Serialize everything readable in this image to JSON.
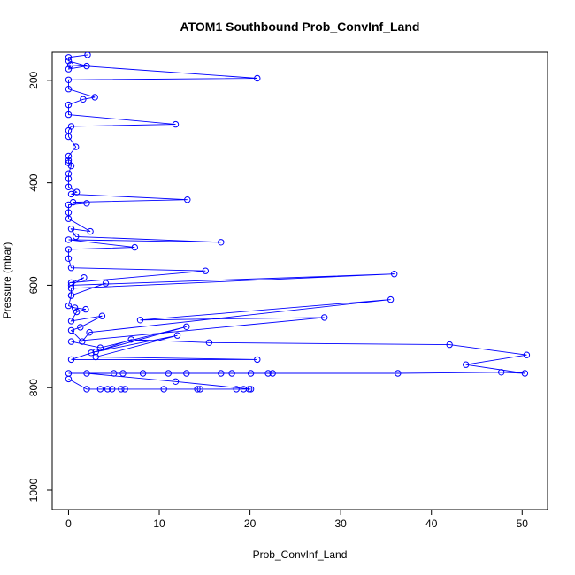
{
  "chart_data": {
    "type": "line",
    "title": "ATOM1 Southbound Prob_ConvInf_Land",
    "xlabel": "Prob_ConvInf_Land",
    "ylabel": "Pressure (mbar)",
    "xlim": [
      -1.8,
      52.8
    ],
    "ylim": [
      1038,
      145
    ],
    "y_reversed": true,
    "grid": false,
    "legend": "none",
    "x_ticks": [
      "0",
      "10",
      "20",
      "30",
      "40",
      "50"
    ],
    "y_ticks": [
      "200",
      "400",
      "600",
      "800",
      "1000"
    ],
    "series": [
      {
        "color": "#0000ff",
        "marker": "open-circle",
        "points": [
          [
            0,
            783
          ],
          [
            2,
            803
          ],
          [
            3.5,
            803
          ],
          [
            4.3,
            803
          ],
          [
            4.8,
            803
          ],
          [
            5.8,
            803
          ],
          [
            6.2,
            803
          ],
          [
            10.5,
            803
          ],
          [
            14.2,
            803
          ],
          [
            14.5,
            803
          ],
          [
            18.5,
            803
          ],
          [
            19.3,
            803
          ],
          [
            19.9,
            803
          ],
          [
            20.1,
            803
          ],
          [
            11.8,
            788
          ],
          [
            2,
            772
          ],
          [
            0,
            772
          ],
          [
            5,
            772
          ],
          [
            6,
            772
          ],
          [
            8.2,
            772
          ],
          [
            11,
            772
          ],
          [
            13,
            772
          ],
          [
            16.8,
            772
          ],
          [
            18,
            772
          ],
          [
            20.1,
            772
          ],
          [
            22,
            772
          ],
          [
            22.5,
            772
          ],
          [
            36.3,
            772
          ],
          [
            47.7,
            770
          ],
          [
            50.3,
            772
          ],
          [
            43.8,
            755
          ],
          [
            50.5,
            736
          ],
          [
            42,
            716
          ],
          [
            15.5,
            712
          ],
          [
            6.9,
            706
          ],
          [
            3,
            730
          ],
          [
            12,
            698
          ],
          [
            3,
            740
          ],
          [
            20.8,
            745
          ],
          [
            0.3,
            745
          ],
          [
            2.5,
            732
          ],
          [
            13,
            681
          ],
          [
            3.5,
            722
          ],
          [
            0.3,
            710
          ],
          [
            28.2,
            663
          ],
          [
            7.9,
            668
          ],
          [
            35.5,
            628
          ],
          [
            2.3,
            692
          ],
          [
            1.5,
            710
          ],
          [
            0.3,
            688
          ],
          [
            1.3,
            682
          ],
          [
            3.7,
            660
          ],
          [
            0.3,
            670
          ],
          [
            0.9,
            652
          ],
          [
            1.9,
            647
          ],
          [
            0.7,
            644
          ],
          [
            0,
            640
          ],
          [
            0.3,
            620
          ],
          [
            4.1,
            596
          ],
          [
            0.3,
            620
          ],
          [
            0.3,
            606
          ],
          [
            35.9,
            578
          ],
          [
            0.3,
            600
          ],
          [
            1.7,
            585
          ],
          [
            0.3,
            595
          ],
          [
            15.1,
            572
          ],
          [
            0.3,
            566
          ],
          [
            0,
            548
          ],
          [
            0,
            530
          ],
          [
            7.3,
            526
          ],
          [
            0,
            511
          ],
          [
            16.8,
            516
          ],
          [
            0.8,
            505
          ],
          [
            0.3,
            490
          ],
          [
            2.4,
            495
          ],
          [
            0,
            470
          ],
          [
            0,
            458
          ],
          [
            0,
            443
          ],
          [
            2,
            440
          ],
          [
            0.5,
            438
          ],
          [
            13.1,
            433
          ],
          [
            0.3,
            422
          ],
          [
            0.9,
            418
          ],
          [
            0,
            408
          ],
          [
            0,
            392
          ],
          [
            0,
            382
          ],
          [
            0.3,
            367
          ],
          [
            0,
            361
          ],
          [
            0,
            356
          ],
          [
            0,
            348
          ],
          [
            0.8,
            330
          ],
          [
            0,
            310
          ],
          [
            0,
            298
          ],
          [
            0.3,
            290
          ],
          [
            11.8,
            286
          ],
          [
            0,
            267
          ],
          [
            0,
            248
          ],
          [
            1.6,
            237
          ],
          [
            2.9,
            233
          ],
          [
            0,
            217
          ],
          [
            0,
            199
          ],
          [
            20.8,
            196
          ],
          [
            0.2,
            170
          ],
          [
            0,
            178
          ],
          [
            2,
            172
          ],
          [
            0,
            162
          ],
          [
            0,
            155
          ],
          [
            2.1,
            150
          ]
        ]
      }
    ]
  }
}
